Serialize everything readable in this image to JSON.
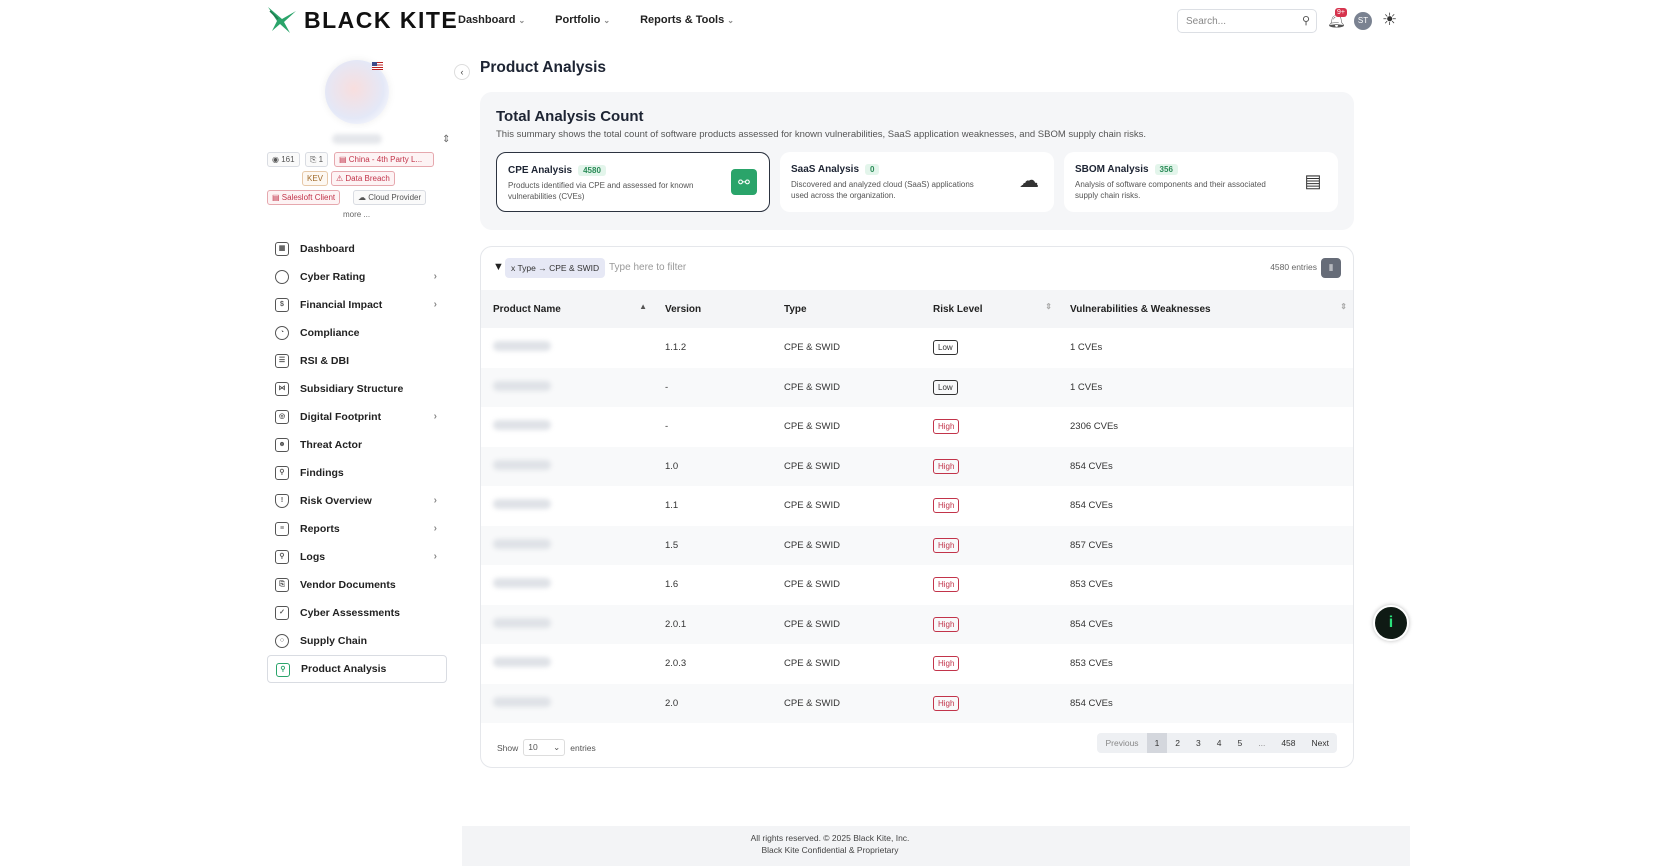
{
  "brand": {
    "name": "BLACK KITE"
  },
  "nav": {
    "items": [
      {
        "label": "Dashboard"
      },
      {
        "label": "Portfolio"
      },
      {
        "label": "Reports & Tools"
      }
    ]
  },
  "topbar": {
    "search_placeholder": "Search...",
    "notifications": "9+",
    "user_initials": "ST"
  },
  "profile": {
    "tags": [
      {
        "label": "◉ 161"
      },
      {
        "label": "⎘ 1"
      },
      {
        "label": "▤ China - 4th Party L..."
      },
      {
        "label": "KEV"
      },
      {
        "label": "⚠ Data Breach"
      },
      {
        "label": "▤ Salesloft Client"
      },
      {
        "label": "☁ Cloud Provider"
      }
    ],
    "more": "more ..."
  },
  "sidebar": {
    "items": [
      {
        "label": "Dashboard"
      },
      {
        "label": "Cyber Rating"
      },
      {
        "label": "Financial Impact"
      },
      {
        "label": "Compliance"
      },
      {
        "label": "RSI & DBI"
      },
      {
        "label": "Subsidiary Structure"
      },
      {
        "label": "Digital Footprint"
      },
      {
        "label": "Threat Actor"
      },
      {
        "label": "Findings"
      },
      {
        "label": "Risk Overview"
      },
      {
        "label": "Reports"
      },
      {
        "label": "Logs"
      },
      {
        "label": "Vendor Documents"
      },
      {
        "label": "Cyber Assessments"
      },
      {
        "label": "Supply Chain"
      },
      {
        "label": "Product Analysis"
      }
    ]
  },
  "page": {
    "title": "Product Analysis"
  },
  "summary": {
    "title": "Total Analysis Count",
    "description": "This summary shows the total count of software products assessed for known vulnerabilities, SaaS application weaknesses, and SBOM supply chain risks.",
    "cards": [
      {
        "title": "CPE Analysis",
        "count": "4580",
        "desc": "Products identified via CPE and assessed for known vulnerabilities (CVEs)"
      },
      {
        "title": "SaaS Analysis",
        "count": "0",
        "desc": "Discovered and analyzed cloud (SaaS) applications used across the organization."
      },
      {
        "title": "SBOM Analysis",
        "count": "356",
        "desc": "Analysis of software components and their associated supply chain risks."
      }
    ]
  },
  "filter": {
    "chip": "x  Type  →  CPE & SWID",
    "placeholder": "Type here to filter",
    "entries": "4580 entries"
  },
  "table": {
    "headers": [
      "Product Name",
      "Version",
      "Type",
      "Risk Level",
      "Vulnerabilities & Weaknesses"
    ],
    "rows": [
      {
        "version": "1.1.2",
        "type": "CPE & SWID",
        "risk": "Low",
        "vulns": "1 CVEs"
      },
      {
        "version": "-",
        "type": "CPE & SWID",
        "risk": "Low",
        "vulns": "1 CVEs"
      },
      {
        "version": "-",
        "type": "CPE & SWID",
        "risk": "High",
        "vulns": "2306 CVEs"
      },
      {
        "version": "1.0",
        "type": "CPE & SWID",
        "risk": "High",
        "vulns": "854 CVEs"
      },
      {
        "version": "1.1",
        "type": "CPE & SWID",
        "risk": "High",
        "vulns": "854 CVEs"
      },
      {
        "version": "1.5",
        "type": "CPE & SWID",
        "risk": "High",
        "vulns": "857 CVEs"
      },
      {
        "version": "1.6",
        "type": "CPE & SWID",
        "risk": "High",
        "vulns": "853 CVEs"
      },
      {
        "version": "2.0.1",
        "type": "CPE & SWID",
        "risk": "High",
        "vulns": "854 CVEs"
      },
      {
        "version": "2.0.3",
        "type": "CPE & SWID",
        "risk": "High",
        "vulns": "853 CVEs"
      },
      {
        "version": "2.0",
        "type": "CPE & SWID",
        "risk": "High",
        "vulns": "854 CVEs"
      }
    ]
  },
  "pagination": {
    "show": "Show",
    "page_size": "10",
    "entries": "entries",
    "pages": [
      "Previous",
      "1",
      "2",
      "3",
      "4",
      "5",
      "...",
      "458",
      "Next"
    ]
  },
  "footer": {
    "line1": "All rights reserved. © 2025 Black Kite, Inc.",
    "line2": "Black Kite Confidential & Proprietary"
  },
  "colors": {
    "accent": "#2aa46a",
    "high": "#c2344a"
  }
}
